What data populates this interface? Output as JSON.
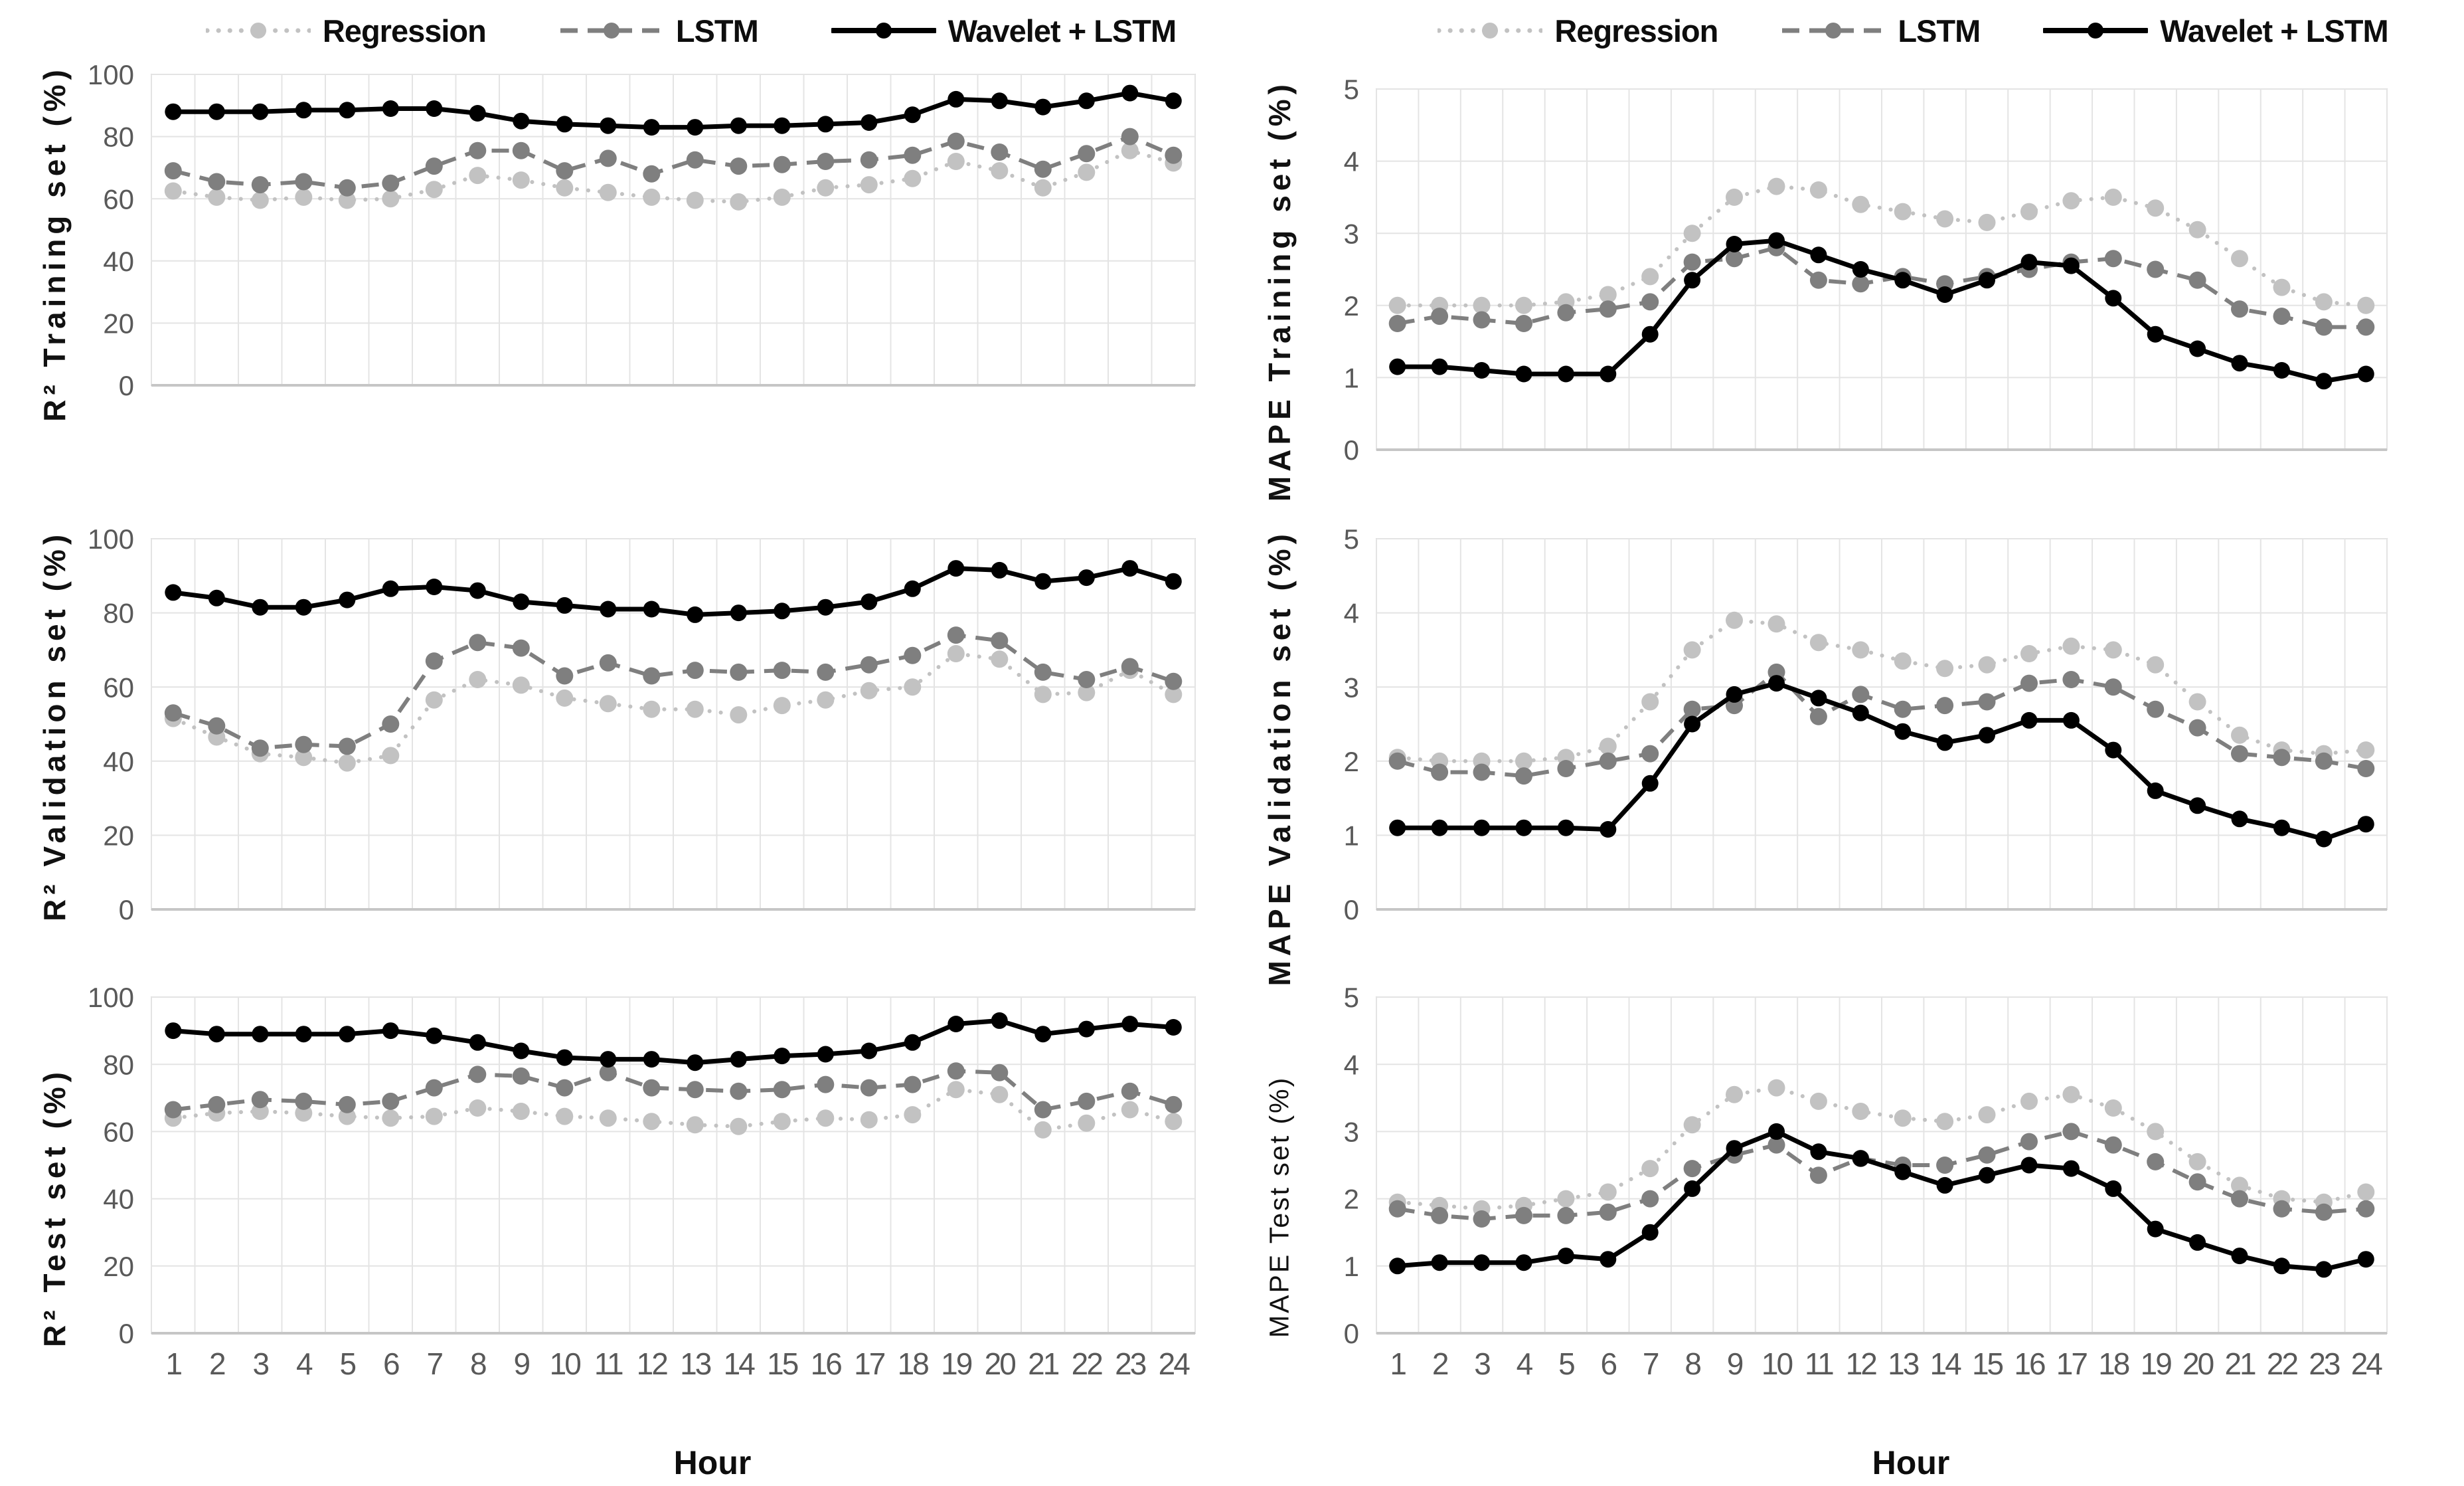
{
  "figure": {
    "background": "#ffffff",
    "tick_color": "#595959",
    "grid_color": "#e4e4e4",
    "border_color": "#d9d9d9",
    "axis_line_color": "#c6c6c6",
    "x_title": "Hour",
    "legend": {
      "position": "top",
      "items": [
        {
          "label": "Regression",
          "color": "#c2c2c2",
          "line_style": "dotted"
        },
        {
          "label": "LSTM",
          "color": "#7f7f7f",
          "line_style": "dashed"
        },
        {
          "label": "Wavelet + LSTM",
          "color": "#000000",
          "line_style": "solid"
        }
      ]
    }
  },
  "chart_data": [
    {
      "type": "line",
      "id": "r2-training",
      "y_title": "R² Training set (%)",
      "xlabel": "Hour",
      "ylim": [
        0,
        100
      ],
      "yticks": [
        0,
        20,
        40,
        60,
        80,
        100
      ],
      "grid": true,
      "legend_position": "top",
      "x": [
        1,
        2,
        3,
        4,
        5,
        6,
        7,
        8,
        9,
        10,
        11,
        12,
        13,
        14,
        15,
        16,
        17,
        18,
        19,
        20,
        21,
        22,
        23,
        24
      ],
      "series": [
        {
          "name": "Regression",
          "values": [
            62.5,
            60.5,
            59.5,
            60.5,
            59.5,
            60,
            63,
            67.5,
            66,
            63.5,
            62,
            60.5,
            59.5,
            59,
            60.5,
            63.5,
            64.5,
            66.5,
            72,
            69,
            63.5,
            68.5,
            75.5,
            71.5
          ]
        },
        {
          "name": "LSTM",
          "values": [
            69,
            65.5,
            64.5,
            65.5,
            63.5,
            65,
            70.5,
            75.5,
            75.5,
            69,
            73,
            68,
            72.5,
            70.5,
            71,
            72,
            72.5,
            74,
            78.5,
            75,
            69.5,
            74.5,
            80,
            74
          ]
        },
        {
          "name": "Wavelet + LSTM",
          "values": [
            88,
            88,
            88,
            88.5,
            88.5,
            89,
            89,
            87.5,
            85,
            84,
            83.5,
            83,
            83,
            83.5,
            83.5,
            84,
            84.5,
            87,
            92,
            91.5,
            89.5,
            91.5,
            94,
            91.5
          ]
        }
      ]
    },
    {
      "type": "line",
      "id": "mape-training",
      "y_title": "MAPE Training set (%)",
      "xlabel": "Hour",
      "ylim": [
        0,
        5
      ],
      "yticks": [
        0,
        1,
        2,
        3,
        4,
        5
      ],
      "grid": true,
      "legend_position": "top",
      "x": [
        1,
        2,
        3,
        4,
        5,
        6,
        7,
        8,
        9,
        10,
        11,
        12,
        13,
        14,
        15,
        16,
        17,
        18,
        19,
        20,
        21,
        22,
        23,
        24
      ],
      "series": [
        {
          "name": "Regression",
          "values": [
            2.0,
            2.0,
            2.0,
            2.0,
            2.05,
            2.15,
            2.4,
            3.0,
            3.5,
            3.65,
            3.6,
            3.4,
            3.3,
            3.2,
            3.15,
            3.3,
            3.45,
            3.5,
            3.35,
            3.05,
            2.65,
            2.25,
            2.05,
            2.0
          ]
        },
        {
          "name": "LSTM",
          "values": [
            1.75,
            1.85,
            1.8,
            1.75,
            1.9,
            1.95,
            2.05,
            2.6,
            2.65,
            2.8,
            2.35,
            2.3,
            2.4,
            2.3,
            2.4,
            2.5,
            2.6,
            2.65,
            2.5,
            2.35,
            1.95,
            1.85,
            1.7,
            1.7
          ]
        },
        {
          "name": "Wavelet + LSTM",
          "values": [
            1.15,
            1.15,
            1.1,
            1.05,
            1.05,
            1.05,
            1.6,
            2.35,
            2.85,
            2.9,
            2.7,
            2.5,
            2.35,
            2.15,
            2.35,
            2.6,
            2.55,
            2.1,
            1.6,
            1.4,
            1.2,
            1.1,
            0.95,
            1.05
          ]
        }
      ]
    },
    {
      "type": "line",
      "id": "r2-validation",
      "y_title": "R² Validation set (%)",
      "xlabel": "Hour",
      "ylim": [
        0,
        100
      ],
      "yticks": [
        0,
        20,
        40,
        60,
        80,
        100
      ],
      "grid": true,
      "legend_position": "none",
      "x": [
        1,
        2,
        3,
        4,
        5,
        6,
        7,
        8,
        9,
        10,
        11,
        12,
        13,
        14,
        15,
        16,
        17,
        18,
        19,
        20,
        21,
        22,
        23,
        24
      ],
      "series": [
        {
          "name": "Regression",
          "values": [
            51.5,
            46.5,
            42,
            41,
            39.5,
            41.5,
            56.5,
            62,
            60.5,
            57,
            55.5,
            54,
            54,
            52.5,
            55,
            56.5,
            59,
            60,
            69,
            67.5,
            58,
            58.5,
            64.5,
            58
          ]
        },
        {
          "name": "LSTM",
          "values": [
            53,
            49.5,
            43.5,
            44.5,
            44,
            50,
            67,
            72,
            70.5,
            63,
            66.5,
            63,
            64.5,
            64,
            64.5,
            64,
            66,
            68.5,
            74,
            72.5,
            64,
            62,
            65.5,
            61.5
          ]
        },
        {
          "name": "Wavelet + LSTM",
          "values": [
            85.5,
            84,
            81.5,
            81.5,
            83.5,
            86.5,
            87,
            86,
            83,
            82,
            81,
            81,
            79.5,
            80,
            80.5,
            81.5,
            83,
            86.5,
            92,
            91.5,
            88.5,
            89.5,
            92,
            88.5
          ]
        }
      ]
    },
    {
      "type": "line",
      "id": "mape-validation",
      "y_title": "MAPE Validation set (%)",
      "xlabel": "Hour",
      "ylim": [
        0,
        5
      ],
      "yticks": [
        0,
        1,
        2,
        3,
        4,
        5
      ],
      "grid": true,
      "legend_position": "none",
      "x": [
        1,
        2,
        3,
        4,
        5,
        6,
        7,
        8,
        9,
        10,
        11,
        12,
        13,
        14,
        15,
        16,
        17,
        18,
        19,
        20,
        21,
        22,
        23,
        24
      ],
      "series": [
        {
          "name": "Regression",
          "values": [
            2.05,
            2.0,
            2.0,
            2.0,
            2.05,
            2.2,
            2.8,
            3.5,
            3.9,
            3.85,
            3.6,
            3.5,
            3.35,
            3.25,
            3.3,
            3.45,
            3.55,
            3.5,
            3.3,
            2.8,
            2.35,
            2.15,
            2.1,
            2.15
          ]
        },
        {
          "name": "LSTM",
          "values": [
            2.0,
            1.85,
            1.85,
            1.8,
            1.9,
            2.0,
            2.1,
            2.7,
            2.75,
            3.2,
            2.6,
            2.9,
            2.7,
            2.75,
            2.8,
            3.05,
            3.1,
            3.0,
            2.7,
            2.45,
            2.1,
            2.05,
            2.0,
            1.9
          ]
        },
        {
          "name": "Wavelet + LSTM",
          "values": [
            1.1,
            1.1,
            1.1,
            1.1,
            1.1,
            1.08,
            1.7,
            2.5,
            2.9,
            3.05,
            2.85,
            2.65,
            2.4,
            2.25,
            2.35,
            2.55,
            2.55,
            2.15,
            1.6,
            1.4,
            1.22,
            1.1,
            0.95,
            1.15
          ]
        }
      ]
    },
    {
      "type": "line",
      "id": "r2-test",
      "y_title": "R² Test set (%)",
      "xlabel": "Hour",
      "ylim": [
        0,
        100
      ],
      "yticks": [
        0,
        20,
        40,
        60,
        80,
        100
      ],
      "grid": true,
      "legend_position": "none",
      "x": [
        1,
        2,
        3,
        4,
        5,
        6,
        7,
        8,
        9,
        10,
        11,
        12,
        13,
        14,
        15,
        16,
        17,
        18,
        19,
        20,
        21,
        22,
        23,
        24
      ],
      "series": [
        {
          "name": "Regression",
          "values": [
            64,
            65.5,
            66,
            65.5,
            64.5,
            64,
            64.5,
            67,
            66,
            64.5,
            64,
            63,
            62,
            61.5,
            63,
            64,
            63.5,
            65,
            72.5,
            71,
            60.5,
            62.5,
            66.5,
            63
          ]
        },
        {
          "name": "LSTM",
          "values": [
            66.5,
            68,
            69.5,
            69,
            68,
            69,
            73,
            77,
            76.5,
            73,
            77.5,
            73,
            72.5,
            72,
            72.5,
            74,
            73,
            74,
            78,
            77.5,
            66.5,
            69,
            72,
            68
          ]
        },
        {
          "name": "Wavelet + LSTM",
          "values": [
            90,
            89,
            89,
            89,
            89,
            90,
            88.5,
            86.5,
            84,
            82,
            81.5,
            81.5,
            80.5,
            81.5,
            82.5,
            83,
            84,
            86.5,
            92,
            93,
            89,
            90.5,
            92,
            91
          ]
        }
      ]
    },
    {
      "type": "line",
      "id": "mape-test",
      "y_title": "MAPE Test set (%)",
      "xlabel": "Hour",
      "ylim": [
        0,
        5
      ],
      "yticks": [
        0,
        1,
        2,
        3,
        4,
        5
      ],
      "grid": true,
      "legend_position": "none",
      "x": [
        1,
        2,
        3,
        4,
        5,
        6,
        7,
        8,
        9,
        10,
        11,
        12,
        13,
        14,
        15,
        16,
        17,
        18,
        19,
        20,
        21,
        22,
        23,
        24
      ],
      "series": [
        {
          "name": "Regression",
          "values": [
            1.95,
            1.9,
            1.85,
            1.9,
            2.0,
            2.1,
            2.45,
            3.1,
            3.55,
            3.65,
            3.45,
            3.3,
            3.2,
            3.15,
            3.25,
            3.45,
            3.55,
            3.35,
            3.0,
            2.55,
            2.2,
            2.0,
            1.95,
            2.1
          ]
        },
        {
          "name": "LSTM",
          "values": [
            1.85,
            1.75,
            1.7,
            1.75,
            1.75,
            1.8,
            2.0,
            2.45,
            2.65,
            2.8,
            2.35,
            2.6,
            2.5,
            2.5,
            2.65,
            2.85,
            3.0,
            2.8,
            2.55,
            2.25,
            2.0,
            1.85,
            1.8,
            1.85
          ]
        },
        {
          "name": "Wavelet + LSTM",
          "values": [
            1.0,
            1.05,
            1.05,
            1.05,
            1.15,
            1.1,
            1.5,
            2.15,
            2.75,
            3.0,
            2.7,
            2.6,
            2.4,
            2.2,
            2.35,
            2.5,
            2.45,
            2.15,
            1.55,
            1.35,
            1.15,
            1.0,
            0.95,
            1.1
          ]
        }
      ]
    }
  ]
}
